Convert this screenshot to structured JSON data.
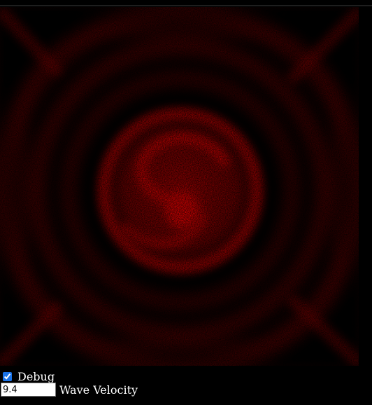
{
  "controls": {
    "debug_label": "Debug",
    "debug_checked": true,
    "wave_velocity_value": "9.4",
    "wave_velocity_label": "Wave Velocity"
  },
  "colors": {
    "wave": "#ff0000",
    "background": "#000000"
  }
}
